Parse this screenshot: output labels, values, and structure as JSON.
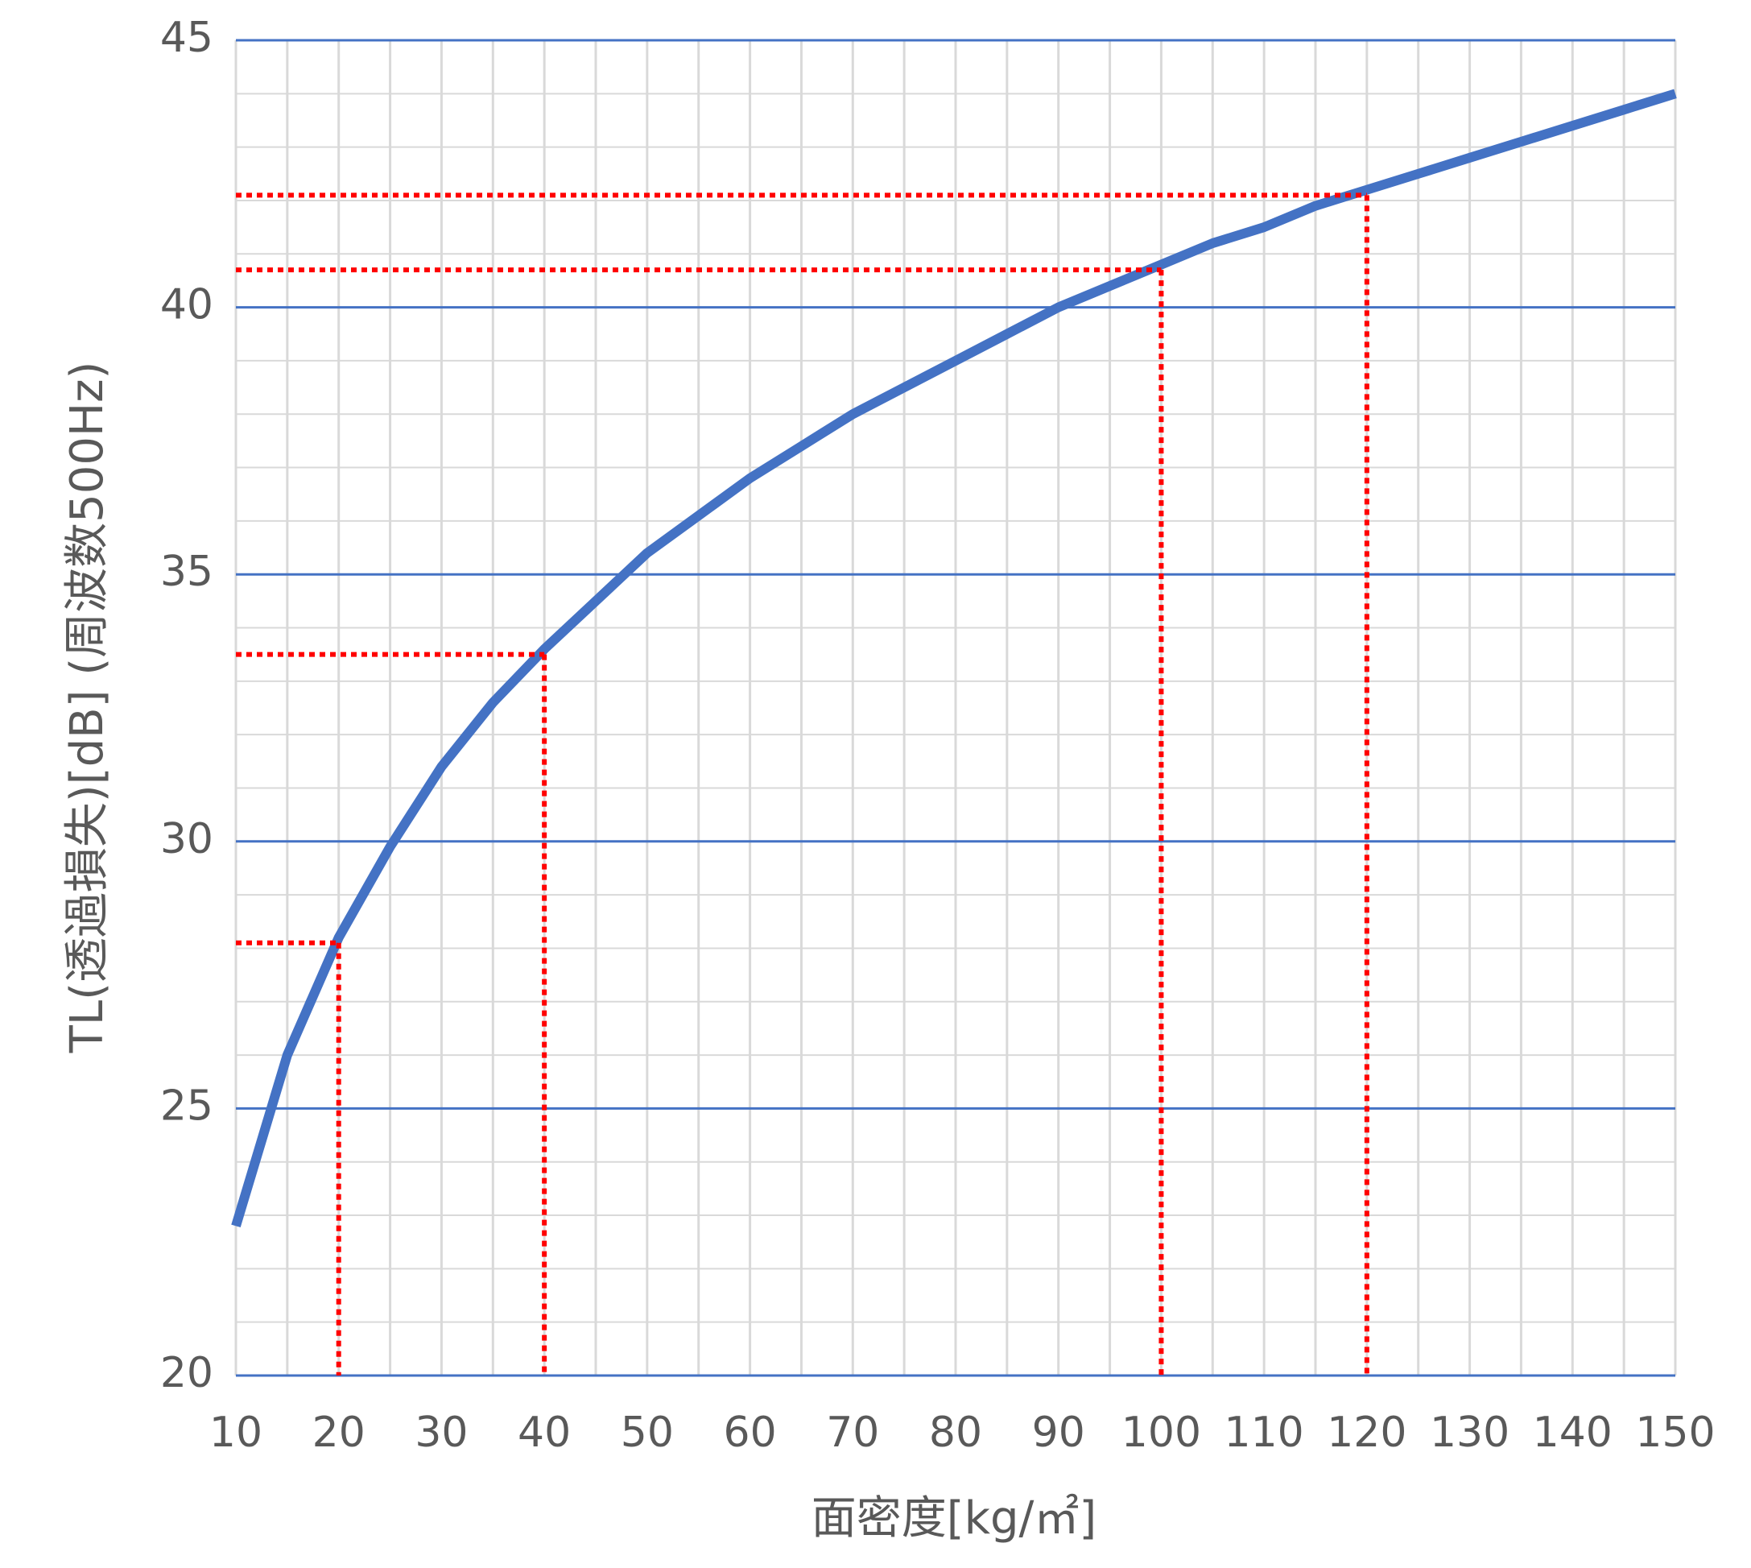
{
  "chart_data": {
    "type": "line",
    "x_label": "面密度[kg/㎡]",
    "y_label": "TL(透過損失)[dB] (周波数500Hz)",
    "x": [
      10,
      15,
      20,
      25,
      30,
      35,
      40,
      45,
      50,
      55,
      60,
      65,
      70,
      75,
      80,
      85,
      90,
      95,
      100,
      105,
      110,
      115,
      120,
      125,
      130,
      135,
      140,
      145,
      150
    ],
    "series": [
      {
        "name": "TL",
        "color": "#4472c4",
        "values": [
          22.8,
          26.0,
          28.2,
          29.9,
          31.4,
          32.6,
          33.6,
          34.5,
          35.4,
          36.1,
          36.8,
          37.4,
          38.0,
          38.5,
          39.0,
          39.5,
          40.0,
          40.4,
          40.8,
          41.2,
          41.5,
          41.9,
          42.2,
          42.5,
          42.8,
          43.1,
          43.4,
          43.7,
          44.0
        ]
      }
    ],
    "references": [
      {
        "x": 20,
        "y": 28.1
      },
      {
        "x": 40,
        "y": 33.5
      },
      {
        "x": 100,
        "y": 40.7
      },
      {
        "x": 120,
        "y": 42.1
      }
    ],
    "reference_color": "#ff0000",
    "xlim": [
      10,
      150
    ],
    "ylim": [
      20,
      45
    ],
    "xticks": [
      10,
      20,
      30,
      40,
      50,
      60,
      70,
      80,
      90,
      100,
      110,
      120,
      130,
      140,
      150
    ],
    "xminorticks": [
      10,
      15,
      20,
      25,
      30,
      35,
      40,
      45,
      50,
      55,
      60,
      65,
      70,
      75,
      80,
      85,
      90,
      95,
      100,
      105,
      110,
      115,
      120,
      125,
      130,
      135,
      140,
      145,
      150
    ],
    "yticks": [
      20,
      25,
      30,
      35,
      40,
      45
    ],
    "yminorticks": [
      21,
      22,
      23,
      24,
      26,
      27,
      28,
      29,
      31,
      32,
      33,
      34,
      36,
      37,
      38,
      39,
      41,
      42,
      43,
      44
    ],
    "major_grid_color": "#4472c4",
    "minor_grid_color": "#d9d9d9",
    "grid": true
  }
}
